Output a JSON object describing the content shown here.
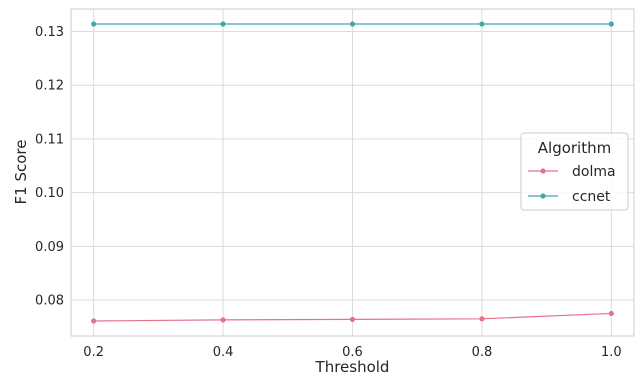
{
  "chart_data": {
    "type": "line",
    "title": "",
    "xlabel": "Threshold",
    "ylabel": "F1 Score",
    "x": [
      0.2,
      0.4,
      0.6,
      0.8,
      1.0
    ],
    "x_tick_labels": [
      "0.2",
      "0.4",
      "0.6",
      "0.8",
      "1.0"
    ],
    "y_tick_values": [
      0.08,
      0.09,
      0.1,
      0.11,
      0.12,
      0.13
    ],
    "y_tick_labels": [
      "0.08",
      "0.09",
      "0.10",
      "0.11",
      "0.12",
      "0.13"
    ],
    "xlim": [
      0.165,
      1.035
    ],
    "ylim": [
      0.0733,
      0.1342
    ],
    "grid": true,
    "legend": {
      "title": "Algorithm",
      "placement": "center-right"
    },
    "series": [
      {
        "name": "dolma",
        "color": "#e8718a",
        "values": [
          0.0761,
          0.0763,
          0.0764,
          0.0765,
          0.0775
        ]
      },
      {
        "name": "ccnet",
        "color": "#3fa9a4",
        "values": [
          0.1314,
          0.1314,
          0.1314,
          0.1314,
          0.1314
        ]
      }
    ]
  }
}
